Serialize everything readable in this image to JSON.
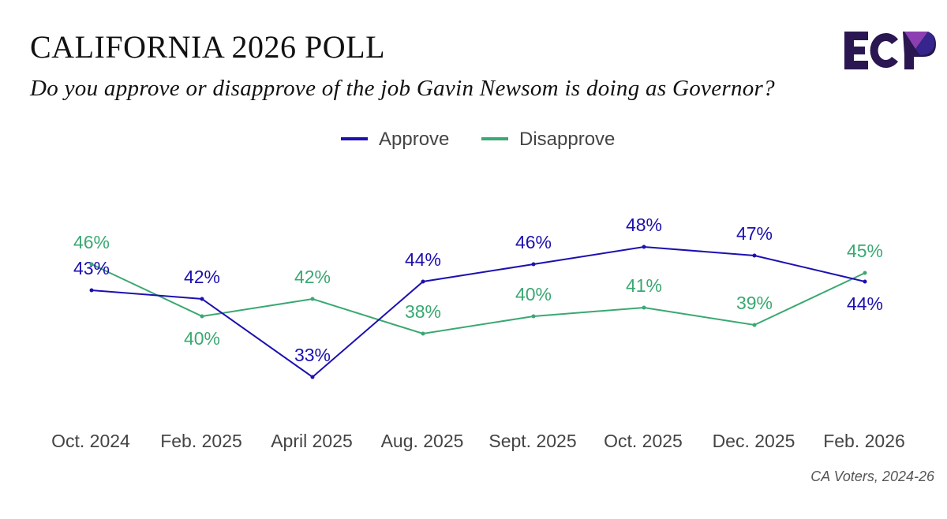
{
  "header": {
    "title": "CALIFORNIA 2026 POLL",
    "subtitle": "Do you approve or disapprove of the job Gavin Newsom is doing as Governor?",
    "logo_text": "ECP"
  },
  "footer": {
    "source": "CA Voters, 2024-26"
  },
  "chart_data": {
    "type": "line",
    "title": "CALIFORNIA 2026 POLL",
    "categories": [
      "Oct. 2024",
      "Feb. 2025",
      "April 2025",
      "Aug. 2025",
      "Sept. 2025",
      "Oct. 2025",
      "Dec. 2025",
      "Feb. 2026"
    ],
    "series": [
      {
        "name": "Approve",
        "color": "#1c10b0",
        "values": [
          43,
          42,
          33,
          44,
          46,
          48,
          47,
          44
        ],
        "labels": [
          "43%",
          "42%",
          "33%",
          "44%",
          "46%",
          "48%",
          "47%",
          "44%"
        ],
        "label_pos": [
          "above",
          "above",
          "above",
          "above",
          "above",
          "above",
          "above",
          "below"
        ]
      },
      {
        "name": "Disapprove",
        "color": "#3aa872",
        "values": [
          46,
          40,
          42,
          38,
          40,
          41,
          39,
          45
        ],
        "labels": [
          "46%",
          "40%",
          "42%",
          "38%",
          "40%",
          "41%",
          "39%",
          "45%"
        ],
        "label_pos": [
          "above",
          "below",
          "above",
          "above",
          "above",
          "above",
          "above",
          "above"
        ]
      }
    ],
    "legend": "top-center",
    "grid": false,
    "xlabel": "",
    "ylabel": ""
  }
}
